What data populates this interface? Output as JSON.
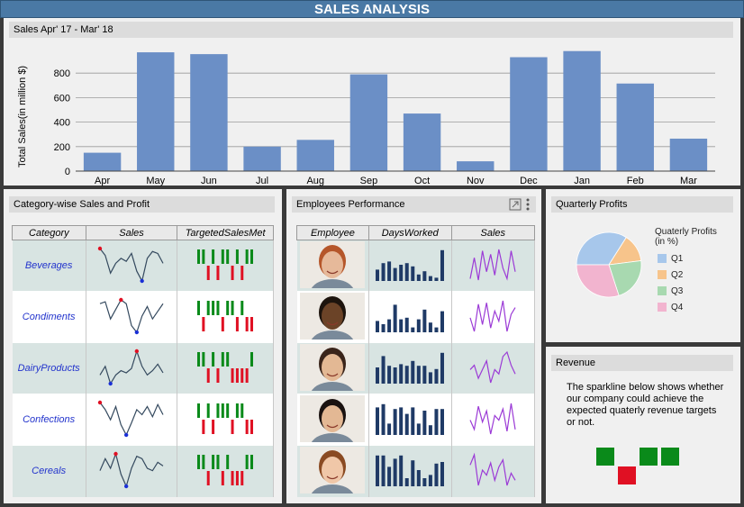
{
  "app_title": "SALES ANALYSIS",
  "sales_panel": {
    "title": "Sales Apr' 17 - Mar' 18"
  },
  "chart_data": {
    "type": "bar",
    "title": "",
    "xlabel": "",
    "ylabel": "Total Sales(in million $)",
    "categories": [
      "Apr",
      "May",
      "Jun",
      "Jul",
      "Aug",
      "Sep",
      "Oct",
      "Nov",
      "Dec",
      "Jan",
      "Feb",
      "Mar"
    ],
    "values": [
      150,
      970,
      955,
      200,
      255,
      790,
      470,
      80,
      930,
      980,
      715,
      265
    ],
    "yticks": [
      0,
      200,
      400,
      600,
      800
    ],
    "ylim": [
      0,
      1000
    ],
    "bar_color": "#6b8fc6",
    "grid": true
  },
  "category_panel": {
    "title": "Category-wise Sales and Profit",
    "columns": [
      "Category",
      "Sales",
      "TargetedSalesMet"
    ],
    "rows": [
      {
        "name": "Beverages",
        "spark": [
          45,
          38,
          20,
          30,
          35,
          32,
          40,
          22,
          12,
          35,
          42,
          40,
          30
        ],
        "targets": [
          1,
          1,
          -1,
          1,
          -1,
          1,
          1,
          -1,
          1,
          -1,
          1,
          1
        ]
      },
      {
        "name": "Condiments",
        "spark": [
          38,
          40,
          22,
          32,
          42,
          38,
          15,
          8,
          25,
          35,
          22,
          30,
          38
        ],
        "targets": [
          1,
          -1,
          1,
          1,
          1,
          -1,
          1,
          1,
          -1,
          1,
          -1,
          -1
        ]
      },
      {
        "name": "DairyProducts",
        "spark": [
          20,
          28,
          12,
          20,
          24,
          22,
          26,
          42,
          28,
          20,
          24,
          30,
          22
        ],
        "targets": [
          1,
          1,
          -1,
          1,
          -1,
          1,
          1,
          -1,
          -1,
          -1,
          -1,
          1
        ]
      },
      {
        "name": "Confections",
        "spark": [
          42,
          35,
          25,
          38,
          20,
          10,
          22,
          35,
          30,
          38,
          28,
          40,
          30
        ],
        "targets": [
          1,
          -1,
          1,
          -1,
          1,
          1,
          1,
          -1,
          1,
          1,
          -1,
          -1
        ]
      },
      {
        "name": "Cereals",
        "spark": [
          28,
          38,
          30,
          42,
          25,
          15,
          30,
          40,
          38,
          30,
          28,
          35,
          32
        ],
        "targets": [
          1,
          1,
          -1,
          1,
          1,
          -1,
          1,
          -1,
          -1,
          -1,
          1,
          1
        ]
      }
    ]
  },
  "employee_panel": {
    "title": "Employees Performance",
    "columns": [
      "Employee",
      "DaysWorked",
      "Sales"
    ],
    "rows": [
      {
        "avatar": "red-haired-woman",
        "skin": "#e6b99a",
        "hair": "#b5562a",
        "days": [
          0.35,
          0.55,
          0.6,
          0.4,
          0.5,
          0.55,
          0.45,
          0.2,
          0.3,
          0.15,
          0.1,
          0.95
        ],
        "sales": [
          30,
          60,
          28,
          70,
          40,
          65,
          35,
          72,
          45,
          30,
          70,
          40
        ]
      },
      {
        "avatar": "smiling-man",
        "skin": "#6b4327",
        "hair": "#1d140d",
        "days": [
          0.35,
          0.25,
          0.4,
          0.85,
          0.4,
          0.45,
          0.15,
          0.4,
          0.7,
          0.3,
          0.15,
          0.65
        ],
        "sales": [
          50,
          30,
          70,
          40,
          72,
          35,
          60,
          45,
          75,
          30,
          55,
          65
        ]
      },
      {
        "avatar": "dark-haired-woman",
        "skin": "#e3b894",
        "hair": "#3a241a",
        "days": [
          0.5,
          0.85,
          0.55,
          0.5,
          0.6,
          0.55,
          0.7,
          0.55,
          0.55,
          0.35,
          0.45,
          0.95
        ],
        "sales": [
          40,
          45,
          30,
          40,
          50,
          25,
          40,
          35,
          55,
          60,
          45,
          35
        ]
      },
      {
        "avatar": "glasses-man",
        "skin": "#e3b894",
        "hair": "#1a1210",
        "days": [
          0.85,
          0.95,
          0.35,
          0.8,
          0.85,
          0.65,
          0.85,
          0.35,
          0.75,
          0.3,
          0.8,
          0.8
        ],
        "sales": [
          40,
          30,
          55,
          38,
          50,
          25,
          45,
          40,
          52,
          28,
          58,
          30
        ]
      },
      {
        "avatar": "smiling-woman",
        "skin": "#f0c7a8",
        "hair": "#8a4a22",
        "days": [
          0.95,
          0.95,
          0.6,
          0.85,
          0.95,
          0.25,
          0.8,
          0.5,
          0.25,
          0.35,
          0.7,
          0.75
        ],
        "sales": [
          50,
          60,
          30,
          45,
          40,
          52,
          35,
          48,
          55,
          30,
          42,
          35
        ]
      }
    ]
  },
  "quarterly_panel": {
    "title": "Quarterly Profits",
    "legend_title": "Quaterly Profits (in %)",
    "slices": [
      {
        "label": "Q1",
        "value": 34,
        "color": "#a7c7eb"
      },
      {
        "label": "Q2",
        "value": 14,
        "color": "#f7c48b"
      },
      {
        "label": "Q3",
        "value": 22,
        "color": "#a8d9b0"
      },
      {
        "label": "Q4",
        "value": 30,
        "color": "#f2b4cf"
      }
    ]
  },
  "revenue_panel": {
    "title": "Revenue",
    "description": "The sparkline below shows whether our company could achieve the expected quaterly revenue targets or not.",
    "targets": [
      1,
      -1,
      1,
      1
    ]
  },
  "colors": {
    "met": "#0a8a1a",
    "missed": "#e01023",
    "accent": "#4a79a5"
  }
}
